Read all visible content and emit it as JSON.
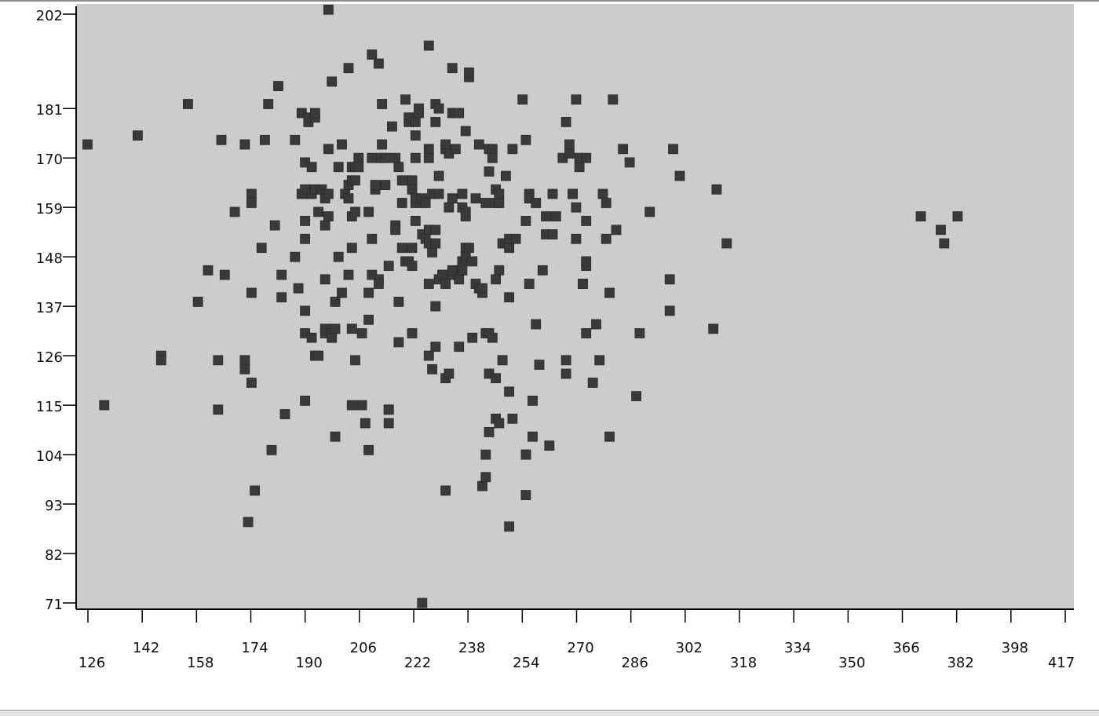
{
  "chart_data": {
    "type": "scatter",
    "title": "",
    "xlabel": "",
    "ylabel": "",
    "grid": false,
    "marker": "square",
    "colors": {
      "plot_background": "#cccccc",
      "marker": "#3a3a3a",
      "axis": "#000000"
    },
    "xlim": [
      123,
      418
    ],
    "ylim": [
      70,
      204
    ],
    "x_ticks": [
      "126",
      "142",
      "158",
      "174",
      "190",
      "206",
      "222",
      "238",
      "254",
      "270",
      "286",
      "302",
      "318",
      "334",
      "350",
      "366",
      "382",
      "398",
      "417"
    ],
    "y_ticks": [
      "71",
      "82",
      "93",
      "104",
      "115",
      "126",
      "137",
      "148",
      "159",
      "170",
      "181",
      "202"
    ],
    "points": [
      [
        126,
        173
      ],
      [
        131,
        115
      ],
      [
        141,
        175
      ],
      [
        148,
        126
      ],
      [
        148,
        125
      ],
      [
        156,
        182
      ],
      [
        159,
        138
      ],
      [
        162,
        145
      ],
      [
        165,
        125
      ],
      [
        165,
        114
      ],
      [
        166,
        174
      ],
      [
        167,
        144
      ],
      [
        170,
        158
      ],
      [
        173,
        125
      ],
      [
        173,
        123
      ],
      [
        173,
        173
      ],
      [
        174,
        89
      ],
      [
        175,
        140
      ],
      [
        175,
        120
      ],
      [
        175,
        162
      ],
      [
        175,
        160
      ],
      [
        176,
        96
      ],
      [
        178,
        150
      ],
      [
        179,
        174
      ],
      [
        180,
        182
      ],
      [
        181,
        105
      ],
      [
        182,
        155
      ],
      [
        183,
        186
      ],
      [
        184,
        144
      ],
      [
        184,
        139
      ],
      [
        185,
        113
      ],
      [
        188,
        174
      ],
      [
        188,
        148
      ],
      [
        189,
        141
      ],
      [
        190,
        180
      ],
      [
        190,
        162
      ],
      [
        191,
        169
      ],
      [
        191,
        163
      ],
      [
        191,
        156
      ],
      [
        191,
        152
      ],
      [
        191,
        136
      ],
      [
        191,
        131
      ],
      [
        191,
        116
      ],
      [
        192,
        178
      ],
      [
        192,
        179
      ],
      [
        193,
        168
      ],
      [
        193,
        162
      ],
      [
        193,
        130
      ],
      [
        194,
        179
      ],
      [
        194,
        180
      ],
      [
        194,
        163
      ],
      [
        194,
        126
      ],
      [
        195,
        158
      ],
      [
        195,
        126
      ],
      [
        196,
        163
      ],
      [
        197,
        162
      ],
      [
        197,
        161
      ],
      [
        197,
        155
      ],
      [
        197,
        132
      ],
      [
        197,
        131
      ],
      [
        197,
        143
      ],
      [
        198,
        203
      ],
      [
        198,
        172
      ],
      [
        198,
        157
      ],
      [
        198,
        162
      ],
      [
        199,
        187
      ],
      [
        199,
        131
      ],
      [
        199,
        130
      ],
      [
        200,
        132
      ],
      [
        200,
        108
      ],
      [
        200,
        138
      ],
      [
        201,
        168
      ],
      [
        201,
        148
      ],
      [
        202,
        140
      ],
      [
        202,
        173
      ],
      [
        203,
        162
      ],
      [
        204,
        164
      ],
      [
        204,
        190
      ],
      [
        204,
        161
      ],
      [
        204,
        144
      ],
      [
        205,
        115
      ],
      [
        205,
        165
      ],
      [
        205,
        168
      ],
      [
        205,
        132
      ],
      [
        205,
        150
      ],
      [
        205,
        157
      ],
      [
        206,
        125
      ],
      [
        206,
        168
      ],
      [
        206,
        158
      ],
      [
        206,
        165
      ],
      [
        207,
        170
      ],
      [
        207,
        168
      ],
      [
        208,
        131
      ],
      [
        208,
        115
      ],
      [
        209,
        111
      ],
      [
        210,
        105
      ],
      [
        210,
        134
      ],
      [
        210,
        158
      ],
      [
        210,
        140
      ],
      [
        211,
        193
      ],
      [
        211,
        170
      ],
      [
        211,
        152
      ],
      [
        211,
        144
      ],
      [
        212,
        163
      ],
      [
        212,
        164
      ],
      [
        213,
        143
      ],
      [
        213,
        191
      ],
      [
        213,
        142
      ],
      [
        214,
        182
      ],
      [
        214,
        170
      ],
      [
        214,
        173
      ],
      [
        215,
        170
      ],
      [
        215,
        164
      ],
      [
        216,
        114
      ],
      [
        216,
        114
      ],
      [
        216,
        111
      ],
      [
        216,
        146
      ],
      [
        217,
        177
      ],
      [
        218,
        170
      ],
      [
        218,
        155
      ],
      [
        218,
        154
      ],
      [
        219,
        138
      ],
      [
        219,
        168
      ],
      [
        219,
        129
      ],
      [
        220,
        150
      ],
      [
        220,
        165
      ],
      [
        220,
        160
      ],
      [
        221,
        183
      ],
      [
        221,
        165
      ],
      [
        221,
        147
      ],
      [
        222,
        147
      ],
      [
        222,
        178
      ],
      [
        222,
        179
      ],
      [
        223,
        164
      ],
      [
        223,
        165
      ],
      [
        223,
        146
      ],
      [
        223,
        150
      ],
      [
        223,
        163
      ],
      [
        223,
        131
      ],
      [
        224,
        170
      ],
      [
        224,
        156
      ],
      [
        224,
        160
      ],
      [
        224,
        161
      ],
      [
        224,
        175
      ],
      [
        224,
        178
      ],
      [
        225,
        181
      ],
      [
        225,
        180
      ],
      [
        226,
        153
      ],
      [
        226,
        161
      ],
      [
        226,
        71
      ],
      [
        227,
        160
      ],
      [
        227,
        152
      ],
      [
        228,
        195
      ],
      [
        228,
        172
      ],
      [
        228,
        170
      ],
      [
        228,
        154
      ],
      [
        228,
        151
      ],
      [
        228,
        142
      ],
      [
        228,
        126
      ],
      [
        229,
        123
      ],
      [
        229,
        149
      ],
      [
        229,
        162
      ],
      [
        230,
        128
      ],
      [
        230,
        137
      ],
      [
        230,
        151
      ],
      [
        230,
        182
      ],
      [
        230,
        178
      ],
      [
        230,
        154
      ],
      [
        231,
        162
      ],
      [
        231,
        166
      ],
      [
        231,
        181
      ],
      [
        231,
        143
      ],
      [
        232,
        144
      ],
      [
        232,
        144
      ],
      [
        233,
        96
      ],
      [
        233,
        172
      ],
      [
        233,
        121
      ],
      [
        233,
        173
      ],
      [
        233,
        142
      ],
      [
        234,
        171
      ],
      [
        234,
        159
      ],
      [
        234,
        122
      ],
      [
        235,
        144
      ],
      [
        235,
        180
      ],
      [
        235,
        161
      ],
      [
        235,
        190
      ],
      [
        235,
        145
      ],
      [
        236,
        180
      ],
      [
        236,
        172
      ],
      [
        237,
        180
      ],
      [
        237,
        128
      ],
      [
        237,
        143
      ],
      [
        238,
        162
      ],
      [
        238,
        145
      ],
      [
        238,
        147
      ],
      [
        238,
        159
      ],
      [
        239,
        176
      ],
      [
        239,
        157
      ],
      [
        239,
        158
      ],
      [
        239,
        150
      ],
      [
        239,
        148
      ],
      [
        240,
        150
      ],
      [
        240,
        188
      ],
      [
        240,
        189
      ],
      [
        241,
        147
      ],
      [
        241,
        130
      ],
      [
        242,
        161
      ],
      [
        242,
        142
      ],
      [
        243,
        141
      ],
      [
        243,
        173
      ],
      [
        244,
        140
      ],
      [
        244,
        141
      ],
      [
        244,
        97
      ],
      [
        245,
        99
      ],
      [
        245,
        104
      ],
      [
        245,
        160
      ],
      [
        245,
        131
      ],
      [
        246,
        122
      ],
      [
        246,
        172
      ],
      [
        246,
        131
      ],
      [
        246,
        109
      ],
      [
        246,
        167
      ],
      [
        247,
        130
      ],
      [
        247,
        170
      ],
      [
        247,
        172
      ],
      [
        248,
        163
      ],
      [
        248,
        121
      ],
      [
        248,
        143
      ],
      [
        248,
        160
      ],
      [
        248,
        112
      ],
      [
        249,
        145
      ],
      [
        249,
        111
      ],
      [
        249,
        162
      ],
      [
        249,
        160
      ],
      [
        250,
        151
      ],
      [
        250,
        125
      ],
      [
        251,
        166
      ],
      [
        251,
        151
      ],
      [
        252,
        152
      ],
      [
        252,
        150
      ],
      [
        252,
        88
      ],
      [
        252,
        139
      ],
      [
        252,
        118
      ],
      [
        253,
        172
      ],
      [
        253,
        112
      ],
      [
        254,
        152
      ],
      [
        256,
        183
      ],
      [
        257,
        104
      ],
      [
        257,
        104
      ],
      [
        257,
        174
      ],
      [
        257,
        95
      ],
      [
        257,
        156
      ],
      [
        258,
        142
      ],
      [
        258,
        162
      ],
      [
        258,
        161
      ],
      [
        259,
        116
      ],
      [
        259,
        108
      ],
      [
        260,
        160
      ],
      [
        260,
        133
      ],
      [
        261,
        124
      ],
      [
        262,
        145
      ],
      [
        263,
        153
      ],
      [
        263,
        157
      ],
      [
        264,
        106
      ],
      [
        265,
        162
      ],
      [
        265,
        153
      ],
      [
        266,
        157
      ],
      [
        268,
        170
      ],
      [
        269,
        178
      ],
      [
        269,
        125
      ],
      [
        269,
        122
      ],
      [
        270,
        173
      ],
      [
        270,
        171
      ],
      [
        271,
        162
      ],
      [
        271,
        162
      ],
      [
        272,
        152
      ],
      [
        272,
        159
      ],
      [
        272,
        183
      ],
      [
        273,
        168
      ],
      [
        273,
        170
      ],
      [
        274,
        142
      ],
      [
        274,
        142
      ],
      [
        275,
        156
      ],
      [
        275,
        131
      ],
      [
        275,
        146
      ],
      [
        275,
        147
      ],
      [
        275,
        170
      ],
      [
        277,
        120
      ],
      [
        278,
        133
      ],
      [
        279,
        125
      ],
      [
        280,
        162
      ],
      [
        281,
        160
      ],
      [
        281,
        152
      ],
      [
        282,
        140
      ],
      [
        282,
        108
      ],
      [
        283,
        183
      ],
      [
        284,
        154
      ],
      [
        286,
        172
      ],
      [
        288,
        169
      ],
      [
        290,
        117
      ],
      [
        291,
        131
      ],
      [
        294,
        158
      ],
      [
        300,
        143
      ],
      [
        300,
        136
      ],
      [
        301,
        172
      ],
      [
        303,
        166
      ],
      [
        313,
        132
      ],
      [
        314,
        163
      ],
      [
        317,
        151
      ],
      [
        375,
        157
      ],
      [
        381,
        154
      ],
      [
        382,
        151
      ],
      [
        386,
        157
      ]
    ]
  }
}
